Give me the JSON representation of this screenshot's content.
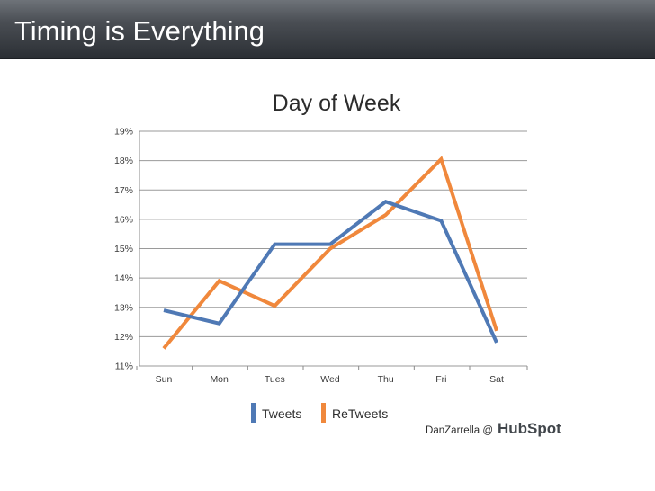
{
  "slide": {
    "title": "Timing is Everything"
  },
  "chart_data": {
    "type": "line",
    "title": "Day of Week",
    "categories": [
      "Sun",
      "Mon",
      "Tues",
      "Wed",
      "Thu",
      "Fri",
      "Sat"
    ],
    "ylim": [
      11,
      19
    ],
    "yticks": [
      "11%",
      "12%",
      "13%",
      "14%",
      "15%",
      "16%",
      "17%",
      "18%",
      "19%"
    ],
    "grid": true,
    "legend": "bottom-center",
    "series": [
      {
        "name": "Tweets",
        "color": "#4f79b5",
        "values": [
          12.9,
          12.45,
          15.15,
          15.15,
          16.6,
          15.95,
          11.8
        ]
      },
      {
        "name": "ReTweets",
        "color": "#f0883c",
        "values": [
          11.6,
          13.9,
          13.05,
          15.0,
          16.15,
          18.05,
          12.2
        ]
      }
    ]
  },
  "credit": {
    "author": "DanZarrella @",
    "logo": "HubSpot"
  }
}
